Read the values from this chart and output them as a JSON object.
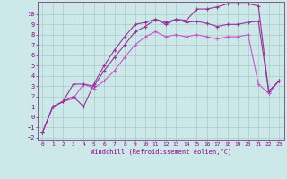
{
  "xlabel": "Windchill (Refroidissement éolien,°C)",
  "bg_color": "#cce8e8",
  "grid_color": "#aacccc",
  "xlim": [
    -0.5,
    23.5
  ],
  "ylim": [
    -2.2,
    11.2
  ],
  "xticks": [
    0,
    1,
    2,
    3,
    4,
    5,
    6,
    7,
    8,
    9,
    10,
    11,
    12,
    13,
    14,
    15,
    16,
    17,
    18,
    19,
    20,
    21,
    22,
    23
  ],
  "yticks": [
    -2,
    -1,
    0,
    1,
    2,
    3,
    4,
    5,
    6,
    7,
    8,
    9,
    10
  ],
  "line1_x": [
    0,
    1,
    2,
    3,
    4,
    5,
    6,
    7,
    8,
    9,
    10,
    11,
    12,
    13,
    14,
    15,
    16,
    17,
    18,
    19,
    20,
    21,
    22,
    23
  ],
  "line1_y": [
    -1.5,
    1.0,
    1.5,
    2.0,
    1.0,
    3.2,
    5.0,
    6.5,
    7.8,
    9.0,
    9.2,
    9.5,
    9.0,
    9.5,
    9.4,
    10.5,
    10.5,
    10.7,
    11.0,
    11.0,
    11.0,
    10.8,
    2.5,
    3.5
  ],
  "line2_x": [
    0,
    1,
    2,
    3,
    4,
    5,
    6,
    7,
    8,
    9,
    10,
    11,
    12,
    13,
    14,
    15,
    16,
    17,
    18,
    19,
    20,
    21,
    22,
    23
  ],
  "line2_y": [
    -1.5,
    1.0,
    1.5,
    3.2,
    3.2,
    3.0,
    4.5,
    5.8,
    7.0,
    8.3,
    8.8,
    9.5,
    9.2,
    9.5,
    9.2,
    9.3,
    9.1,
    8.8,
    9.0,
    9.0,
    9.2,
    9.3,
    2.5,
    3.5
  ],
  "line3_x": [
    0,
    1,
    2,
    3,
    4,
    5,
    6,
    7,
    8,
    9,
    10,
    11,
    12,
    13,
    14,
    15,
    16,
    17,
    18,
    19,
    20,
    21,
    22,
    23
  ],
  "line3_y": [
    -1.5,
    1.0,
    1.5,
    1.8,
    3.2,
    2.8,
    3.5,
    4.5,
    5.8,
    7.0,
    7.8,
    8.3,
    7.8,
    8.0,
    7.8,
    8.0,
    7.8,
    7.6,
    7.8,
    7.8,
    8.0,
    3.2,
    2.3,
    3.5
  ],
  "line_color1": "#993399",
  "line_color2": "#993399",
  "line_color3": "#cc55cc"
}
